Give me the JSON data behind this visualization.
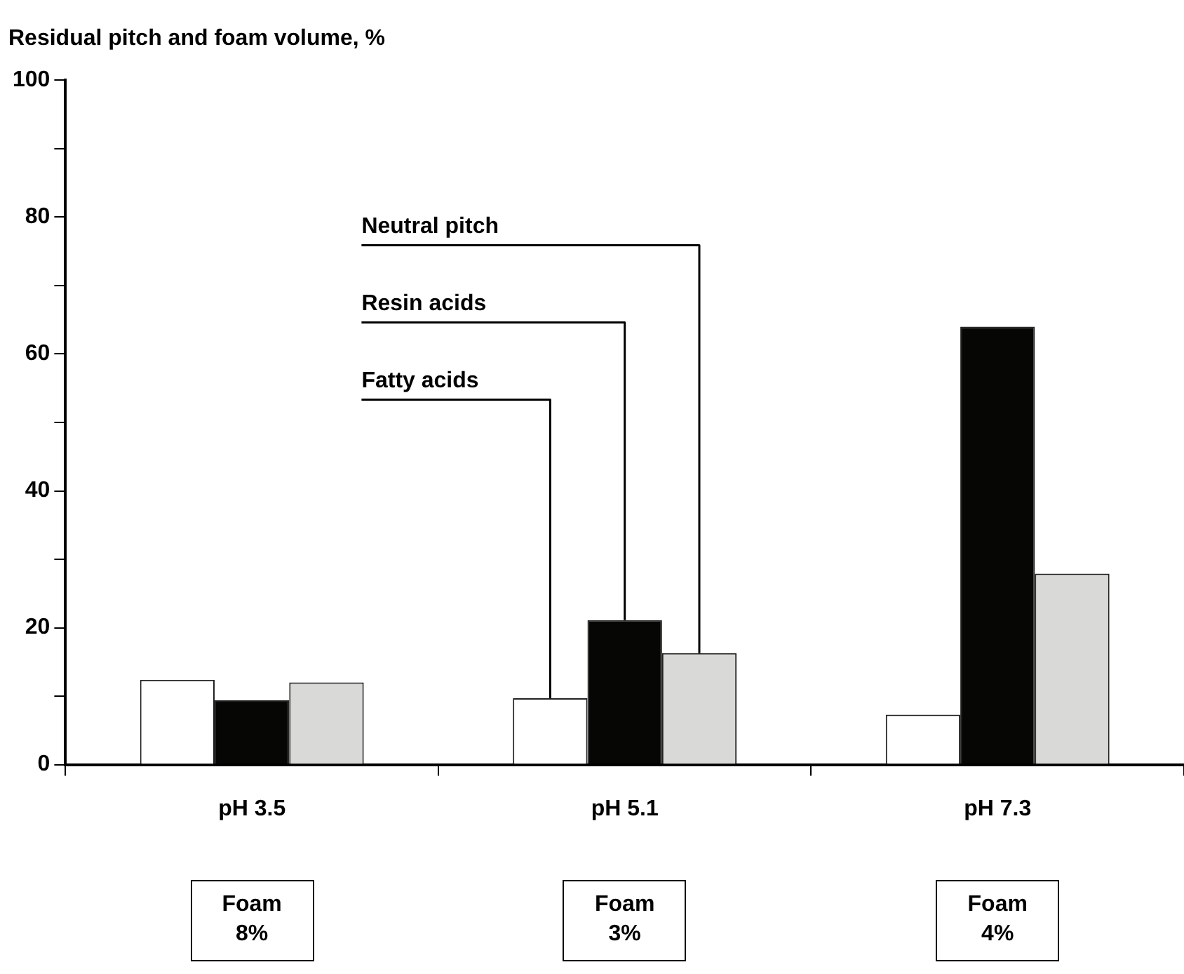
{
  "chart_data": {
    "type": "bar",
    "title": "Residual pitch and foam volume, %",
    "categories": [
      "pH 3.5",
      "pH 5.1",
      "pH 7.3"
    ],
    "series": [
      {
        "name": "Fatty acids",
        "color": "#ffffff",
        "values": [
          12.4,
          9.7,
          7.3
        ]
      },
      {
        "name": "Resin acids",
        "color": "#060604",
        "values": [
          9.4,
          21.1,
          64.0
        ]
      },
      {
        "name": "Neutral pitch",
        "color": "#d9d9d7",
        "values": [
          12.0,
          16.3,
          27.9
        ]
      }
    ],
    "ylim": [
      0,
      100
    ],
    "yticks": [
      0,
      {
        "value": 10,
        "label": null
      },
      20,
      {
        "value": 30,
        "label": null
      },
      40,
      {
        "value": 50,
        "label": null
      },
      60,
      {
        "value": 70,
        "label": null
      },
      80,
      {
        "value": 90,
        "label": null
      },
      100
    ],
    "grid": false,
    "legend": false,
    "annotations": [
      "Foam 8%",
      "Foam 3%",
      "Foam 4%"
    ]
  }
}
